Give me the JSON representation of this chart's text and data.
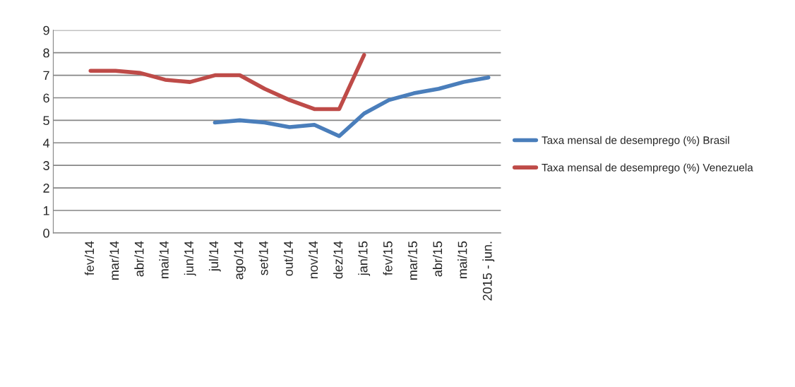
{
  "chart_data": {
    "type": "line",
    "categories": [
      null,
      "fev/14",
      "mar/14",
      "abr/14",
      "mai/14",
      "jun/14",
      "jul/14",
      "ago/14",
      "set/14",
      "out/14",
      "nov/14",
      "dez/14",
      "jan/15",
      "fev/15",
      "mar/15",
      "abr/15",
      "mai/15",
      "2015 - jun."
    ],
    "series": [
      {
        "name": "Taxa mensal de desemprego (%) Brasil",
        "color": "#4a7ebb",
        "values": [
          null,
          null,
          null,
          null,
          null,
          null,
          4.9,
          5.0,
          4.9,
          4.7,
          4.8,
          4.3,
          5.3,
          5.9,
          6.2,
          6.4,
          6.7,
          6.9
        ]
      },
      {
        "name": "Taxa mensal de desemprego (%) Venezuela",
        "color": "#be4b48",
        "values": [
          null,
          7.2,
          7.2,
          7.1,
          6.8,
          6.7,
          7.0,
          7.0,
          6.4,
          5.9,
          5.5,
          5.5,
          7.9,
          null,
          null,
          null,
          null,
          null
        ]
      }
    ],
    "ylim": [
      0,
      9
    ],
    "yticks": [
      0,
      1,
      2,
      3,
      4,
      5,
      6,
      7,
      8,
      9
    ],
    "grid": "y",
    "legend": "right",
    "marker": "none",
    "line_style": "solid"
  }
}
